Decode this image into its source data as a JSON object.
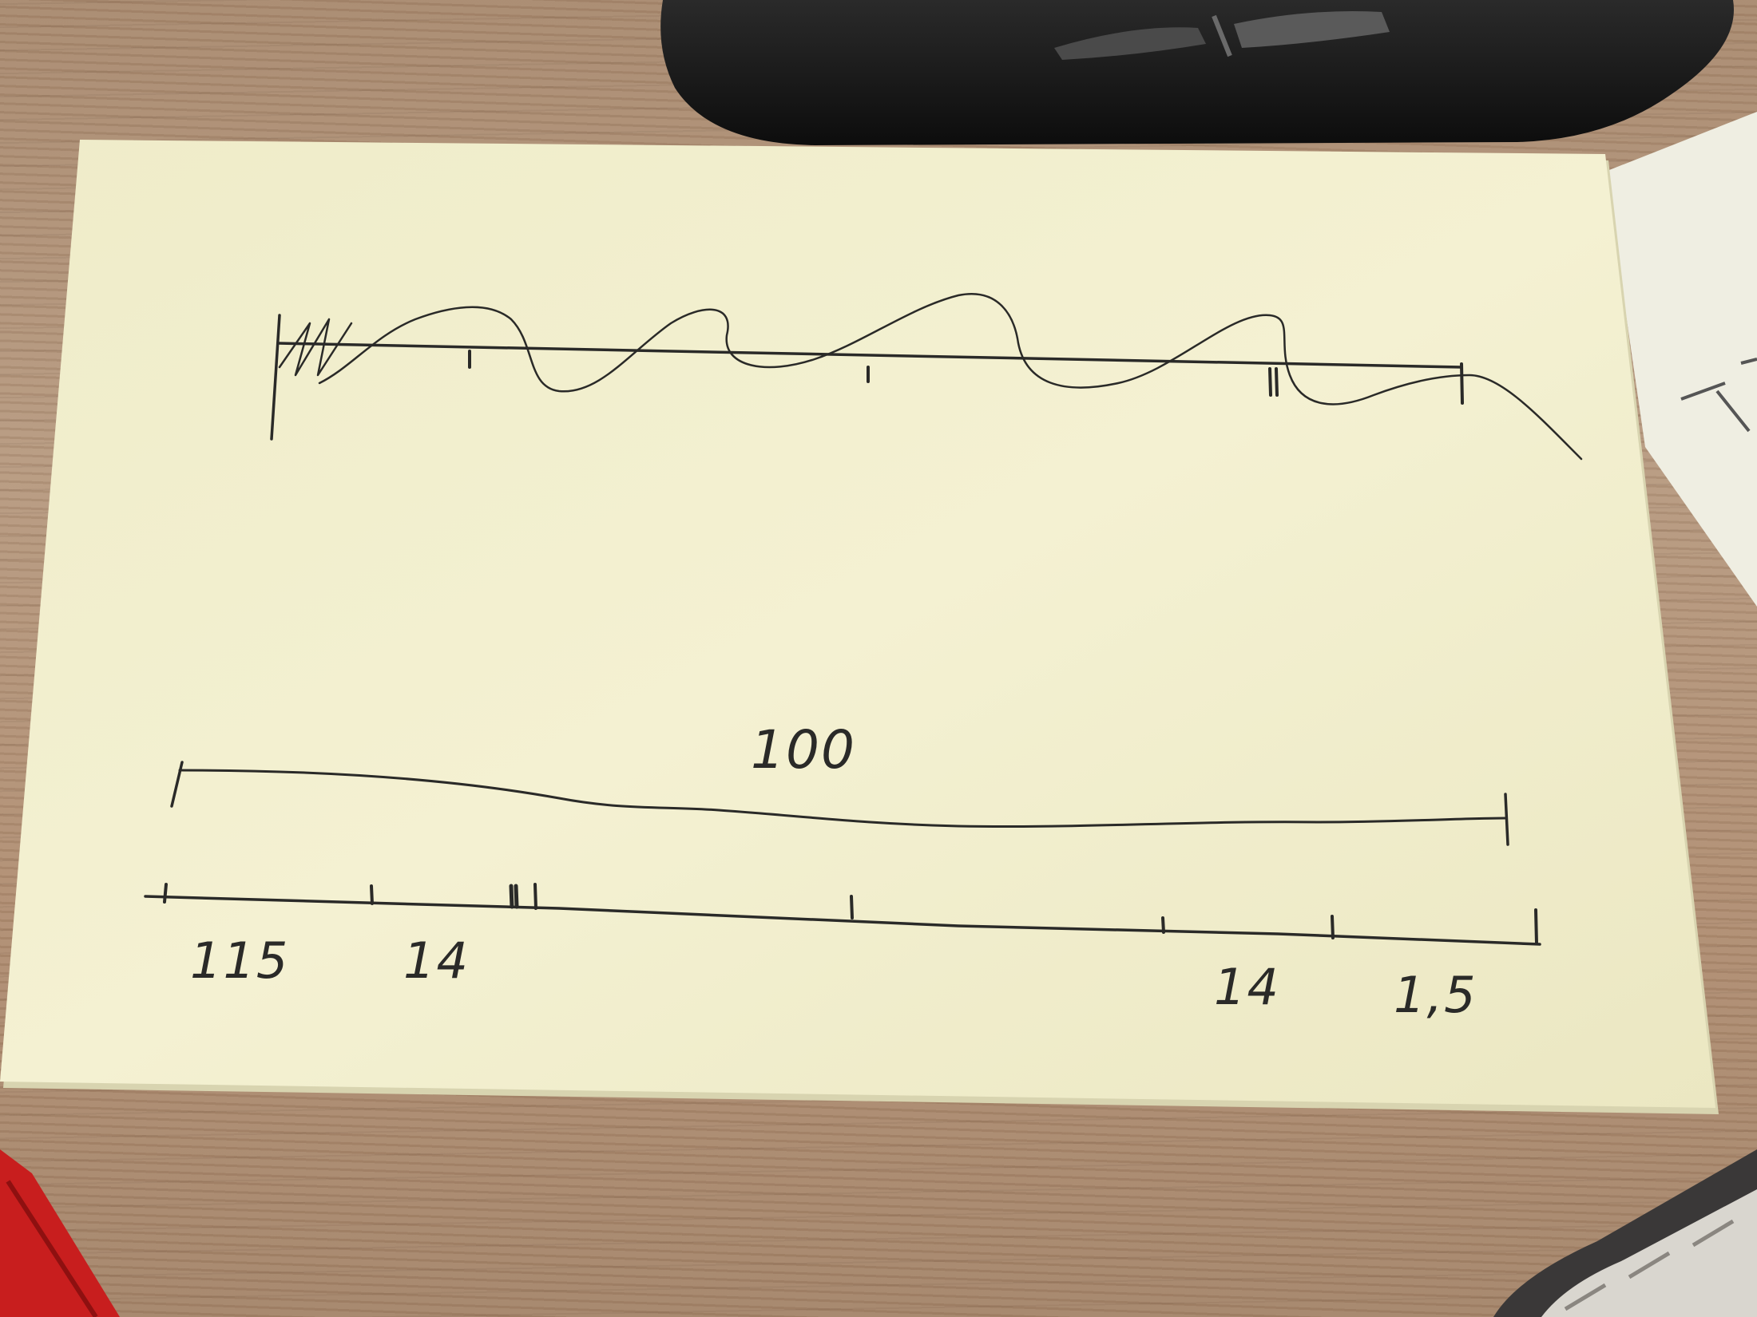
{
  "colors": {
    "desk": "#b08e72",
    "card": "#f3f0cf",
    "ink": "#2a2a28",
    "mouse": "#1a1a1a",
    "red_object": "#c81e1e"
  },
  "sketch": {
    "top_diagram": {
      "description_shape": "wavy line crossing horizontal axis with tick marks"
    },
    "bottom_diagram": {
      "value_label": "100",
      "axis_labels": [
        "115",
        "14",
        "14",
        "1,5"
      ]
    }
  }
}
